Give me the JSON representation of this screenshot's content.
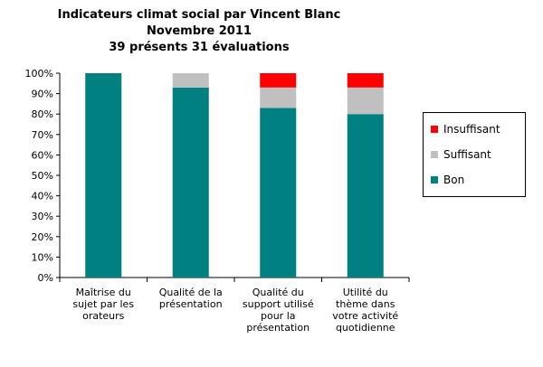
{
  "chart_data": {
    "type": "bar",
    "stacked": true,
    "title": [
      "Indicateurs climat social par Vincent Blanc",
      "Novembre 2011",
      "39 présents 31 évaluations"
    ],
    "categories": [
      [
        "Maîtrise du",
        "sujet par les",
        "orateurs"
      ],
      [
        "Qualité de la",
        "présentation"
      ],
      [
        "Qualité du",
        "support utilisé",
        "pour la",
        "présentation"
      ],
      [
        "Utilité du",
        "thème dans",
        "votre activité",
        "quotidienne"
      ]
    ],
    "series": [
      {
        "name": "Bon",
        "color": "#008080",
        "values": [
          100,
          93,
          83,
          80
        ]
      },
      {
        "name": "Suffisant",
        "color": "#C0C0C0",
        "values": [
          0,
          7,
          10,
          13
        ]
      },
      {
        "name": "Insuffisant",
        "color": "#FF0000",
        "values": [
          0,
          0,
          7,
          7
        ]
      }
    ],
    "legend_order": [
      "Insuffisant",
      "Suffisant",
      "Bon"
    ],
    "yticks": [
      "0%",
      "10%",
      "20%",
      "30%",
      "40%",
      "50%",
      "60%",
      "70%",
      "80%",
      "90%",
      "100%"
    ],
    "ylim": [
      0,
      100
    ],
    "legend_position": "right",
    "grid": false
  }
}
